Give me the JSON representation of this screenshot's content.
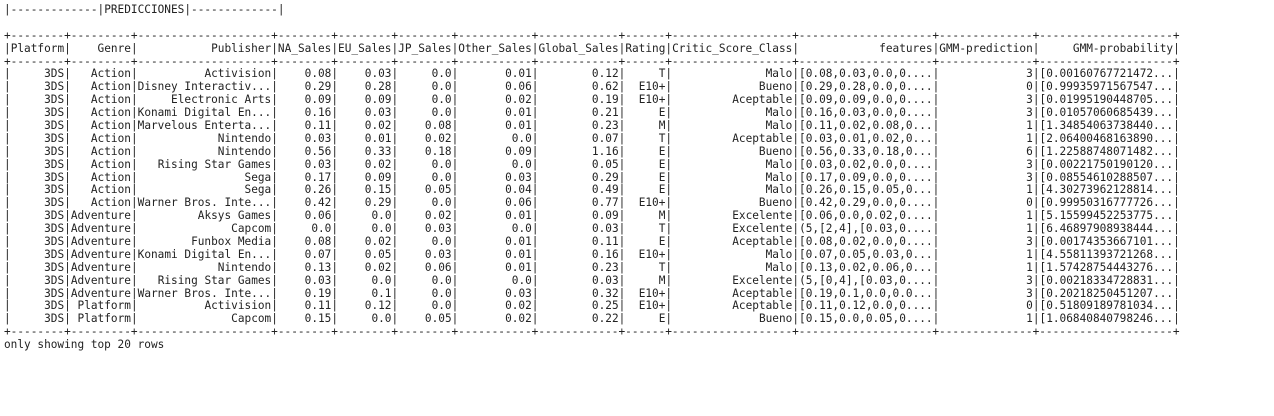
{
  "header_text": "PREDICCIONES",
  "columns": [
    "Platform",
    "Genre",
    "Publisher",
    "NA_Sales",
    "EU_Sales",
    "JP_Sales",
    "Other_Sales",
    "Global_Sales",
    "Rating",
    "Critic_Score_Class",
    "features",
    "GMM-prediction",
    "GMM-probability"
  ],
  "rows": [
    [
      "3DS",
      "Action",
      "Activision",
      "0.08",
      "0.03",
      "0.0",
      "0.01",
      "0.12",
      "T",
      "Malo",
      "[0.08,0.03,0.0,0....",
      "3",
      "[0.00160767721472..."
    ],
    [
      "3DS",
      "Action",
      "Disney Interactiv...",
      "0.29",
      "0.28",
      "0.0",
      "0.06",
      "0.62",
      "E10+",
      "Bueno",
      "[0.29,0.28,0.0,0....",
      "0",
      "[0.99935971567547..."
    ],
    [
      "3DS",
      "Action",
      "Electronic Arts",
      "0.09",
      "0.09",
      "0.0",
      "0.02",
      "0.19",
      "E10+",
      "Aceptable",
      "[0.09,0.09,0.0,0....",
      "3",
      "[0.01995190448705..."
    ],
    [
      "3DS",
      "Action",
      "Konami Digital En...",
      "0.16",
      "0.03",
      "0.0",
      "0.01",
      "0.21",
      "E",
      "Malo",
      "[0.16,0.03,0.0,0....",
      "3",
      "[0.01057060685439..."
    ],
    [
      "3DS",
      "Action",
      "Marvelous Enterta...",
      "0.11",
      "0.02",
      "0.08",
      "0.01",
      "0.23",
      "M",
      "Malo",
      "[0.11,0.02,0.08,0...",
      "1",
      "[1.34854063738440..."
    ],
    [
      "3DS",
      "Action",
      "Nintendo",
      "0.03",
      "0.01",
      "0.02",
      "0.0",
      "0.07",
      "T",
      "Aceptable",
      "[0.03,0.01,0.02,0...",
      "1",
      "[2.06400468163890..."
    ],
    [
      "3DS",
      "Action",
      "Nintendo",
      "0.56",
      "0.33",
      "0.18",
      "0.09",
      "1.16",
      "E",
      "Bueno",
      "[0.56,0.33,0.18,0...",
      "6",
      "[1.22588748071482..."
    ],
    [
      "3DS",
      "Action",
      "Rising Star Games",
      "0.03",
      "0.02",
      "0.0",
      "0.0",
      "0.05",
      "E",
      "Malo",
      "[0.03,0.02,0.0,0....",
      "3",
      "[0.00221750190120..."
    ],
    [
      "3DS",
      "Action",
      "Sega",
      "0.17",
      "0.09",
      "0.0",
      "0.03",
      "0.29",
      "E",
      "Malo",
      "[0.17,0.09,0.0,0....",
      "3",
      "[0.08554610288507..."
    ],
    [
      "3DS",
      "Action",
      "Sega",
      "0.26",
      "0.15",
      "0.05",
      "0.04",
      "0.49",
      "E",
      "Malo",
      "[0.26,0.15,0.05,0...",
      "1",
      "[4.30273962128814..."
    ],
    [
      "3DS",
      "Action",
      "Warner Bros. Inte...",
      "0.42",
      "0.29",
      "0.0",
      "0.06",
      "0.77",
      "E10+",
      "Bueno",
      "[0.42,0.29,0.0,0....",
      "0",
      "[0.99950316777726..."
    ],
    [
      "3DS",
      "Adventure",
      "Aksys Games",
      "0.06",
      "0.0",
      "0.02",
      "0.01",
      "0.09",
      "M",
      "Excelente",
      "[0.06,0.0,0.02,0....",
      "1",
      "[5.15599452253775..."
    ],
    [
      "3DS",
      "Adventure",
      "Capcom",
      "0.0",
      "0.0",
      "0.03",
      "0.0",
      "0.03",
      "T",
      "Excelente",
      "(5,[2,4],[0.03,0....",
      "1",
      "[6.46897908938444..."
    ],
    [
      "3DS",
      "Adventure",
      "Funbox Media",
      "0.08",
      "0.02",
      "0.0",
      "0.01",
      "0.11",
      "E",
      "Aceptable",
      "[0.08,0.02,0.0,0....",
      "3",
      "[0.00174353667101..."
    ],
    [
      "3DS",
      "Adventure",
      "Konami Digital En...",
      "0.07",
      "0.05",
      "0.03",
      "0.01",
      "0.16",
      "E10+",
      "Malo",
      "[0.07,0.05,0.03,0...",
      "1",
      "[4.55811393721268..."
    ],
    [
      "3DS",
      "Adventure",
      "Nintendo",
      "0.13",
      "0.02",
      "0.06",
      "0.01",
      "0.23",
      "T",
      "Malo",
      "[0.13,0.02,0.06,0...",
      "1",
      "[1.57428754443276..."
    ],
    [
      "3DS",
      "Adventure",
      "Rising Star Games",
      "0.03",
      "0.0",
      "0.0",
      "0.0",
      "0.03",
      "M",
      "Excelente",
      "(5,[0,4],[0.03,0....",
      "3",
      "[0.00218334728831..."
    ],
    [
      "3DS",
      "Adventure",
      "Warner Bros. Inte...",
      "0.19",
      "0.1",
      "0.0",
      "0.03",
      "0.32",
      "E10+",
      "Aceptable",
      "[0.19,0.1,0.0,0.0...",
      "3",
      "[0.20218250451207..."
    ],
    [
      "3DS",
      "Platform",
      "Activision",
      "0.11",
      "0.12",
      "0.0",
      "0.02",
      "0.25",
      "E10+",
      "Aceptable",
      "[0.11,0.12,0.0,0....",
      "0",
      "[0.51809189781034..."
    ],
    [
      "3DS",
      "Platform",
      "Capcom",
      "0.15",
      "0.0",
      "0.05",
      "0.02",
      "0.22",
      "E",
      "Bueno",
      "[0.15,0.0,0.05,0....",
      "1",
      "[1.06840840798246..."
    ]
  ],
  "footer_text": "only showing top 20 rows"
}
